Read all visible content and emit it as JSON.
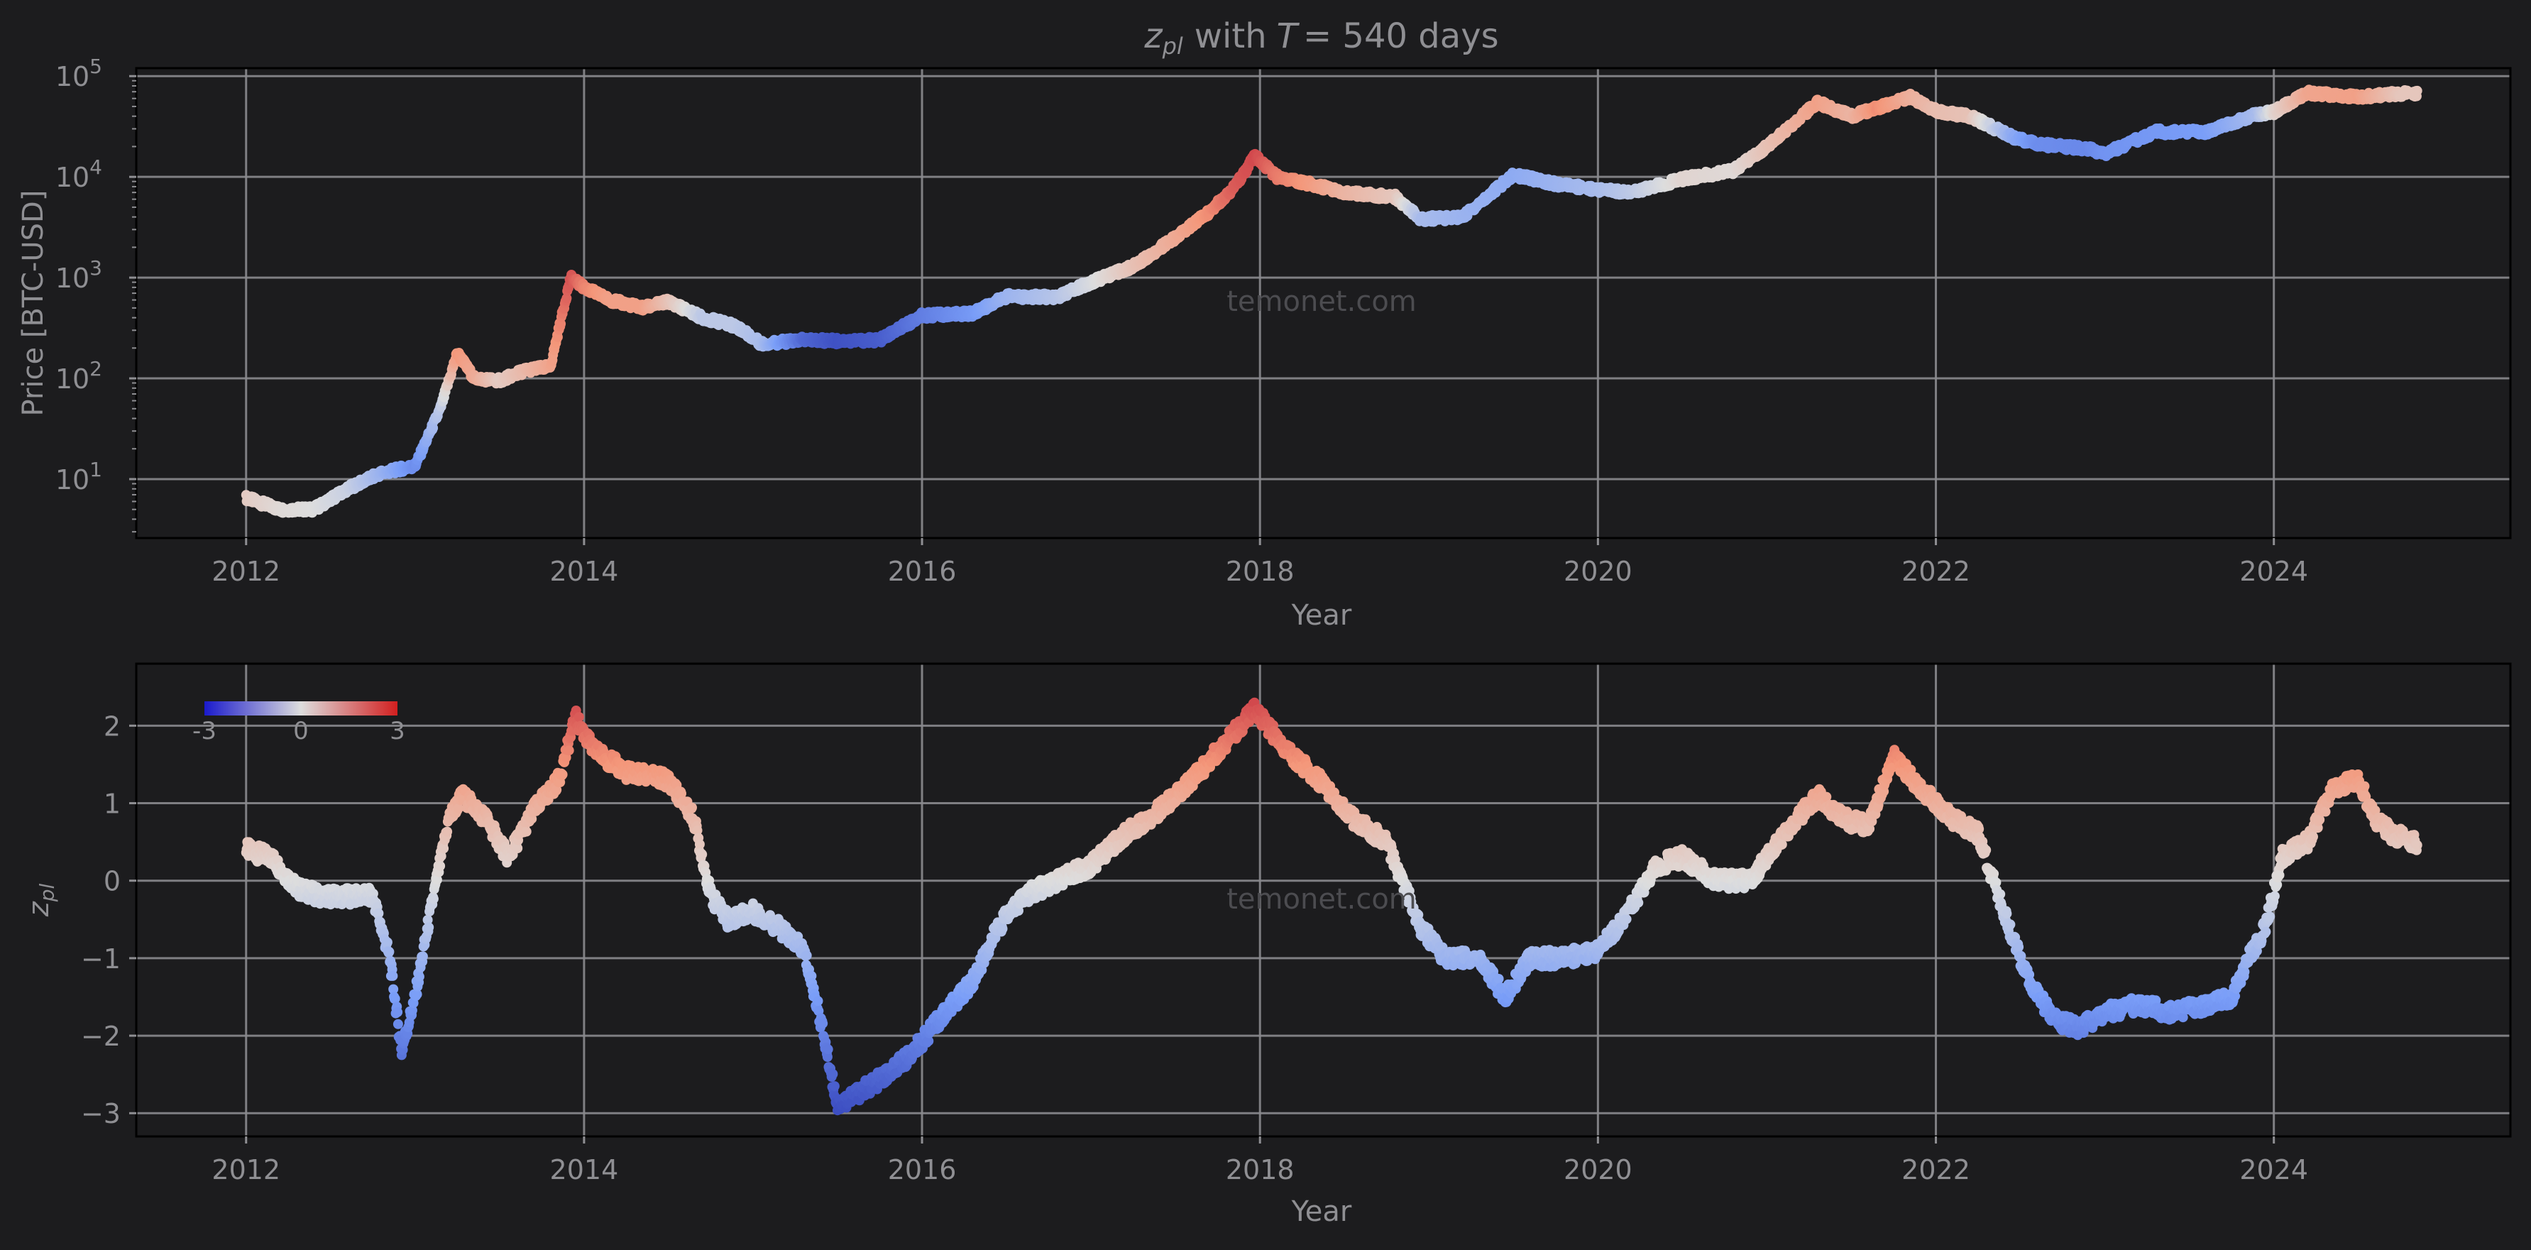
{
  "figure": {
    "title_var": "z",
    "title_var_sub": "pl",
    "title_with": "with",
    "title_T": "T",
    "title_rest": "= 540 days",
    "watermark": "temonet.com",
    "background": "#1c1c1e",
    "axes_background": "#1c1c1e",
    "text_color": "#8f8f93"
  },
  "chart_data": [
    {
      "type": "scatter",
      "name": "price",
      "title": "z_pl with T = 540 days",
      "xlabel": "Year",
      "ylabel": "Price [BTC-USD]",
      "yscale": "log",
      "xlim": [
        2011.35,
        2025.4
      ],
      "ylim": [
        2.6,
        120000
      ],
      "grid": true,
      "colormap": "coolwarm",
      "color_value": "z_pl",
      "xticks": [
        "2012",
        "2014",
        "2016",
        "2018",
        "2020",
        "2022",
        "2024"
      ],
      "xtick_values": [
        2012,
        2014,
        2016,
        2018,
        2020,
        2022,
        2024
      ],
      "ytick_values": [
        10,
        100,
        1000,
        10000,
        100000
      ],
      "ytick_labels": [
        {
          "base": "10",
          "exp": "1"
        },
        {
          "base": "10",
          "exp": "2"
        },
        {
          "base": "10",
          "exp": "3"
        },
        {
          "base": "10",
          "exp": "4"
        },
        {
          "base": "10",
          "exp": "5"
        }
      ],
      "x": [
        2012.0,
        2012.2,
        2012.4,
        2012.6,
        2012.8,
        2013.0,
        2013.15,
        2013.25,
        2013.35,
        2013.5,
        2013.65,
        2013.8,
        2013.92,
        2014.0,
        2014.15,
        2014.35,
        2014.5,
        2014.7,
        2014.9,
        2015.05,
        2015.3,
        2015.5,
        2015.75,
        2016.0,
        2016.3,
        2016.5,
        2016.8,
        2017.0,
        2017.25,
        2017.5,
        2017.7,
        2017.85,
        2017.97,
        2018.1,
        2018.3,
        2018.5,
        2018.8,
        2018.95,
        2019.2,
        2019.5,
        2019.75,
        2020.0,
        2020.2,
        2020.5,
        2020.8,
        2021.0,
        2021.3,
        2021.5,
        2021.65,
        2021.85,
        2022.0,
        2022.2,
        2022.45,
        2022.6,
        2022.9,
        2023.0,
        2023.3,
        2023.6,
        2023.9,
        2024.0,
        2024.2,
        2024.5,
        2024.75,
        2024.85
      ],
      "y": [
        6.5,
        5,
        5,
        8,
        11.5,
        13.5,
        50,
        180,
        100,
        95,
        120,
        130,
        1000,
        800,
        600,
        500,
        580,
        400,
        330,
        220,
        240,
        235,
        240,
        420,
        440,
        650,
        640,
        900,
        1300,
        2500,
        4500,
        8000,
        16000,
        10000,
        8500,
        7000,
        6300,
        3800,
        4000,
        10500,
        8500,
        7500,
        7000,
        9500,
        11500,
        20000,
        55000,
        40000,
        48000,
        62000,
        45000,
        40000,
        25000,
        21000,
        19000,
        17000,
        28000,
        28000,
        42000,
        44000,
        68000,
        62000,
        67000,
        68000
      ],
      "z": [
        0.4,
        0.1,
        0.0,
        -0.3,
        -1.0,
        -1.8,
        -0.5,
        1.5,
        1.1,
        0.4,
        0.8,
        1.2,
        2.2,
        1.7,
        1.3,
        1.3,
        0.6,
        -0.5,
        -0.5,
        -0.8,
        -2.5,
        -2.9,
        -2.7,
        -2.1,
        -1.6,
        -1.0,
        -0.6,
        -0.1,
        0.6,
        1.1,
        1.6,
        2.1,
        2.3,
        1.8,
        1.4,
        0.9,
        0.5,
        -0.8,
        -1.0,
        -1.2,
        -1.0,
        -0.8,
        -0.5,
        0.2,
        0.1,
        0.6,
        1.3,
        0.9,
        1.6,
        1.0,
        0.7,
        0.6,
        -1.2,
        -1.8,
        -1.9,
        -1.7,
        -1.6,
        -1.5,
        -0.8,
        0.2,
        1.2,
        1.3,
        0.5,
        0.5
      ]
    },
    {
      "type": "scatter",
      "name": "z_pl",
      "xlabel": "Year",
      "ylabel": "z_pl",
      "ylabel_var": "z",
      "ylabel_sub": "pl",
      "xlim": [
        2011.35,
        2025.4
      ],
      "ylim": [
        -3.3,
        2.8
      ],
      "grid": true,
      "colormap": "coolwarm",
      "xticks": [
        "2012",
        "2014",
        "2016",
        "2018",
        "2020",
        "2022",
        "2024"
      ],
      "xtick_values": [
        2012,
        2014,
        2016,
        2018,
        2020,
        2022,
        2024
      ],
      "ytick_values": [
        2,
        1,
        0,
        -1,
        -2,
        -3
      ],
      "ytick_labels": [
        "2",
        "1",
        "0",
        "−1",
        "−2",
        "−3"
      ],
      "colorbar": {
        "ticks": [
          "-3",
          "0",
          "3"
        ],
        "min": -3,
        "max": 3,
        "placement": "upper-left"
      },
      "x": [
        2012.0,
        2012.15,
        2012.3,
        2012.45,
        2012.6,
        2012.75,
        2012.85,
        2012.92,
        2013.0,
        2013.1,
        2013.2,
        2013.28,
        2013.42,
        2013.55,
        2013.7,
        2013.85,
        2013.95,
        2014.05,
        2014.25,
        2014.5,
        2014.65,
        2014.75,
        2014.85,
        2015.0,
        2015.15,
        2015.3,
        2015.4,
        2015.5,
        2015.65,
        2015.8,
        2015.95,
        2016.1,
        2016.3,
        2016.45,
        2016.6,
        2016.8,
        2017.0,
        2017.2,
        2017.4,
        2017.6,
        2017.8,
        2017.97,
        2018.15,
        2018.35,
        2018.55,
        2018.75,
        2018.95,
        2019.1,
        2019.3,
        2019.45,
        2019.6,
        2019.8,
        2020.0,
        2020.15,
        2020.35,
        2020.5,
        2020.7,
        2020.9,
        2021.1,
        2021.3,
        2021.45,
        2021.6,
        2021.75,
        2021.9,
        2022.1,
        2022.25,
        2022.4,
        2022.55,
        2022.7,
        2022.85,
        2023.0,
        2023.2,
        2023.4,
        2023.6,
        2023.75,
        2023.85,
        2023.95,
        2024.05,
        2024.2,
        2024.35,
        2024.5,
        2024.6,
        2024.7,
        2024.85
      ],
      "y": [
        0.4,
        0.3,
        -0.1,
        -0.2,
        -0.2,
        -0.2,
        -1.0,
        -2.2,
        -1.5,
        -0.3,
        0.8,
        1.1,
        0.8,
        0.3,
        0.9,
        1.3,
        2.1,
        1.7,
        1.4,
        1.3,
        0.8,
        -0.2,
        -0.5,
        -0.4,
        -0.6,
        -0.9,
        -1.8,
        -2.9,
        -2.7,
        -2.5,
        -2.2,
        -1.8,
        -1.3,
        -0.6,
        -0.2,
        0.0,
        0.2,
        0.6,
        0.9,
        1.3,
        1.8,
        2.2,
        1.7,
        1.3,
        0.8,
        0.5,
        -0.6,
        -1.0,
        -1.0,
        -1.5,
        -1.0,
        -1.0,
        -0.9,
        -0.5,
        0.2,
        0.3,
        0.0,
        0.0,
        0.6,
        1.1,
        0.8,
        0.7,
        1.6,
        1.2,
        0.8,
        0.6,
        -0.4,
        -1.3,
        -1.8,
        -1.9,
        -1.7,
        -1.6,
        -1.7,
        -1.6,
        -1.5,
        -1.0,
        -0.6,
        0.3,
        0.5,
        1.2,
        1.3,
        0.8,
        0.6,
        0.5
      ]
    }
  ]
}
